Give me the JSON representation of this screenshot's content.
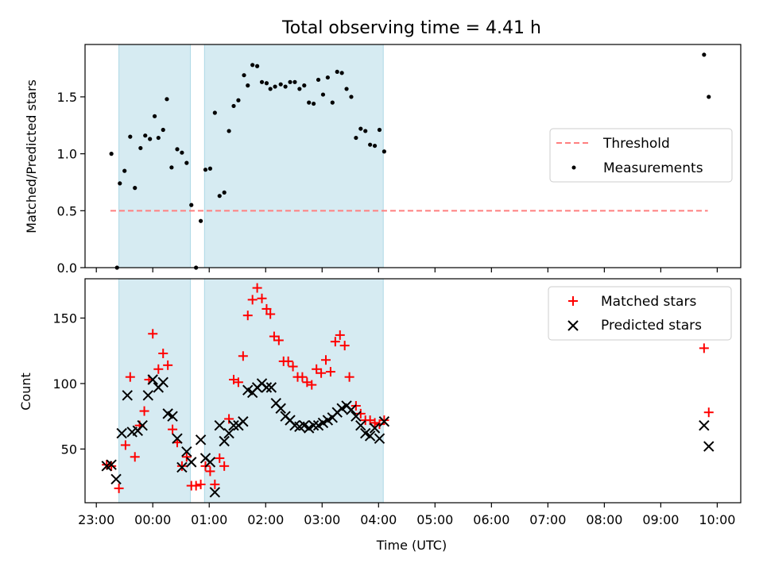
{
  "figure": {
    "title": "Total observing time = 4.41 h",
    "xlabel": "Time (UTC)"
  },
  "chart_data": [
    {
      "type": "scatter",
      "panel": "top",
      "ylabel": "Matched/Predicted stars",
      "xlim": [
        "22:48",
        "10:25"
      ],
      "ylim": [
        0,
        1.96
      ],
      "y_ticks": [
        "0.0",
        "0.5",
        "1.0",
        "1.5"
      ],
      "y_tick_values": [
        0,
        0.5,
        1.0,
        1.5
      ],
      "x_ticks": [
        "23:00",
        "00:00",
        "01:00",
        "02:00",
        "03:00",
        "04:00",
        "05:00",
        "06:00",
        "07:00",
        "08:00",
        "09:00",
        "10:00"
      ],
      "shaded_intervals": [
        [
          "23:24",
          "00:40"
        ],
        [
          "00:55",
          "04:05"
        ]
      ],
      "shade_color": "#add8e6",
      "legend": {
        "position": "center-right",
        "entries": [
          "Threshold",
          "Measurements"
        ]
      },
      "threshold": {
        "name": "Threshold",
        "value": 0.5,
        "x_range": [
          "23:15",
          "09:50"
        ],
        "color": "#ff7f7f",
        "style": "dashed"
      },
      "series": [
        {
          "name": "Measurements",
          "color": "#000000",
          "marker": "dot",
          "points": [
            [
              "23:16",
              1.0
            ],
            [
              "23:22",
              0.0
            ],
            [
              "23:25",
              0.74
            ],
            [
              "23:30",
              0.85
            ],
            [
              "23:36",
              1.15
            ],
            [
              "23:41",
              0.7
            ],
            [
              "23:47",
              1.05
            ],
            [
              "23:52",
              1.16
            ],
            [
              "23:57",
              1.13
            ],
            [
              "00:02",
              1.33
            ],
            [
              "00:06",
              1.14
            ],
            [
              "00:11",
              1.21
            ],
            [
              "00:15",
              1.48
            ],
            [
              "00:20",
              0.88
            ],
            [
              "00:26",
              1.04
            ],
            [
              "00:31",
              1.01
            ],
            [
              "00:36",
              0.92
            ],
            [
              "00:41",
              0.55
            ],
            [
              "00:46",
              0.0
            ],
            [
              "00:51",
              0.41
            ],
            [
              "00:56",
              0.86
            ],
            [
              "01:01",
              0.87
            ],
            [
              "01:06",
              1.36
            ],
            [
              "01:11",
              0.63
            ],
            [
              "01:16",
              0.66
            ],
            [
              "01:21",
              1.2
            ],
            [
              "01:26",
              1.42
            ],
            [
              "01:31",
              1.47
            ],
            [
              "01:37",
              1.69
            ],
            [
              "01:41",
              1.6
            ],
            [
              "01:46",
              1.78
            ],
            [
              "01:51",
              1.77
            ],
            [
              "01:56",
              1.63
            ],
            [
              "02:01",
              1.62
            ],
            [
              "02:05",
              1.57
            ],
            [
              "02:10",
              1.59
            ],
            [
              "02:16",
              1.61
            ],
            [
              "02:21",
              1.59
            ],
            [
              "02:26",
              1.63
            ],
            [
              "02:31",
              1.63
            ],
            [
              "02:36",
              1.57
            ],
            [
              "02:41",
              1.6
            ],
            [
              "02:46",
              1.45
            ],
            [
              "02:51",
              1.44
            ],
            [
              "02:56",
              1.65
            ],
            [
              "03:01",
              1.52
            ],
            [
              "03:06",
              1.67
            ],
            [
              "03:11",
              1.45
            ],
            [
              "03:16",
              1.72
            ],
            [
              "03:21",
              1.71
            ],
            [
              "03:26",
              1.57
            ],
            [
              "03:31",
              1.5
            ],
            [
              "03:36",
              1.14
            ],
            [
              "03:41",
              1.22
            ],
            [
              "03:46",
              1.2
            ],
            [
              "03:51",
              1.08
            ],
            [
              "03:56",
              1.07
            ],
            [
              "04:01",
              1.21
            ],
            [
              "04:06",
              1.02
            ],
            [
              "09:46",
              1.87
            ],
            [
              "09:51",
              1.5
            ]
          ]
        }
      ]
    },
    {
      "type": "scatter",
      "panel": "bottom",
      "ylabel": "Count",
      "xlim": [
        "22:48",
        "10:25"
      ],
      "ylim": [
        9,
        180
      ],
      "y_ticks": [
        "50",
        "100",
        "150"
      ],
      "y_tick_values": [
        50,
        100,
        150
      ],
      "x_ticks": [
        "23:00",
        "00:00",
        "01:00",
        "02:00",
        "03:00",
        "04:00",
        "05:00",
        "06:00",
        "07:00",
        "08:00",
        "09:00",
        "10:00"
      ],
      "shaded_intervals": [
        [
          "23:24",
          "00:40"
        ],
        [
          "00:55",
          "04:05"
        ]
      ],
      "shade_color": "#add8e6",
      "legend": {
        "position": "top-right",
        "entries": [
          "Matched stars",
          "Predicted stars"
        ]
      },
      "series": [
        {
          "name": "Matched stars",
          "color": "#ff0000",
          "marker": "plus",
          "points": [
            [
              "23:11",
              38
            ],
            [
              "23:16",
              37
            ],
            [
              "23:24",
              20
            ],
            [
              "23:31",
              53
            ],
            [
              "23:36",
              105
            ],
            [
              "23:41",
              44
            ],
            [
              "23:46",
              68
            ],
            [
              "23:51",
              79
            ],
            [
              "23:56",
              103
            ],
            [
              "00:00",
              138
            ],
            [
              "00:06",
              111
            ],
            [
              "00:11",
              123
            ],
            [
              "00:16",
              114
            ],
            [
              "00:21",
              65
            ],
            [
              "00:26",
              55
            ],
            [
              "00:31",
              37
            ],
            [
              "00:36",
              44
            ],
            [
              "00:41",
              22
            ],
            [
              "00:46",
              22
            ],
            [
              "00:51",
              23
            ],
            [
              "00:56",
              37
            ],
            [
              "01:01",
              33
            ],
            [
              "01:06",
              23
            ],
            [
              "01:11",
              43
            ],
            [
              "01:16",
              37
            ],
            [
              "01:21",
              73
            ],
            [
              "01:26",
              103
            ],
            [
              "01:31",
              101
            ],
            [
              "01:36",
              121
            ],
            [
              "01:41",
              152
            ],
            [
              "01:46",
              164
            ],
            [
              "01:51",
              173
            ],
            [
              "01:56",
              165
            ],
            [
              "02:01",
              157
            ],
            [
              "02:05",
              153
            ],
            [
              "02:09",
              136
            ],
            [
              "02:14",
              133
            ],
            [
              "02:19",
              117
            ],
            [
              "02:24",
              117
            ],
            [
              "02:29",
              113
            ],
            [
              "02:34",
              105
            ],
            [
              "02:39",
              105
            ],
            [
              "02:44",
              101
            ],
            [
              "02:49",
              99
            ],
            [
              "02:54",
              111
            ],
            [
              "02:59",
              108
            ],
            [
              "03:04",
              118
            ],
            [
              "03:09",
              109
            ],
            [
              "03:14",
              132
            ],
            [
              "03:19",
              137
            ],
            [
              "03:24",
              129
            ],
            [
              "03:29",
              105
            ],
            [
              "03:36",
              83
            ],
            [
              "03:41",
              77
            ],
            [
              "03:46",
              72
            ],
            [
              "03:51",
              72
            ],
            [
              "03:56",
              70
            ],
            [
              "04:01",
              69
            ],
            [
              "04:06",
              72
            ],
            [
              "09:46",
              127
            ],
            [
              "09:51",
              78
            ]
          ]
        },
        {
          "name": "Predicted stars",
          "color": "#000000",
          "marker": "x",
          "points": [
            [
              "23:11",
              37
            ],
            [
              "23:16",
              38
            ],
            [
              "23:21",
              27
            ],
            [
              "23:27",
              62
            ],
            [
              "23:33",
              91
            ],
            [
              "23:38",
              63
            ],
            [
              "23:44",
              64
            ],
            [
              "23:49",
              68
            ],
            [
              "23:55",
              91
            ],
            [
              "00:00",
              103
            ],
            [
              "00:06",
              97
            ],
            [
              "00:11",
              101
            ],
            [
              "00:16",
              77
            ],
            [
              "00:21",
              75
            ],
            [
              "00:26",
              58
            ],
            [
              "00:31",
              36
            ],
            [
              "00:36",
              48
            ],
            [
              "00:41",
              40
            ],
            [
              "00:51",
              57
            ],
            [
              "00:56",
              43
            ],
            [
              "01:01",
              40
            ],
            [
              "01:06",
              17
            ],
            [
              "01:11",
              68
            ],
            [
              "01:16",
              56
            ],
            [
              "01:21",
              62
            ],
            [
              "01:26",
              68
            ],
            [
              "01:31",
              68
            ],
            [
              "01:36",
              71
            ],
            [
              "01:41",
              95
            ],
            [
              "01:46",
              93
            ],
            [
              "01:51",
              97
            ],
            [
              "01:56",
              100
            ],
            [
              "02:01",
              97
            ],
            [
              "02:06",
              97
            ],
            [
              "02:11",
              85
            ],
            [
              "02:16",
              81
            ],
            [
              "02:21",
              75
            ],
            [
              "02:26",
              72
            ],
            [
              "02:31",
              68
            ],
            [
              "02:36",
              67
            ],
            [
              "02:41",
              68
            ],
            [
              "02:46",
              66
            ],
            [
              "02:51",
              68
            ],
            [
              "02:56",
              68
            ],
            [
              "03:01",
              70
            ],
            [
              "03:06",
              72
            ],
            [
              "03:11",
              74
            ],
            [
              "03:16",
              78
            ],
            [
              "03:21",
              81
            ],
            [
              "03:26",
              83
            ],
            [
              "03:31",
              80
            ],
            [
              "03:36",
              75
            ],
            [
              "03:41",
              68
            ],
            [
              "03:46",
              62
            ],
            [
              "03:51",
              60
            ],
            [
              "03:56",
              66
            ],
            [
              "04:01",
              58
            ],
            [
              "04:06",
              71
            ],
            [
              "09:46",
              68
            ],
            [
              "09:51",
              52
            ]
          ]
        }
      ]
    }
  ]
}
